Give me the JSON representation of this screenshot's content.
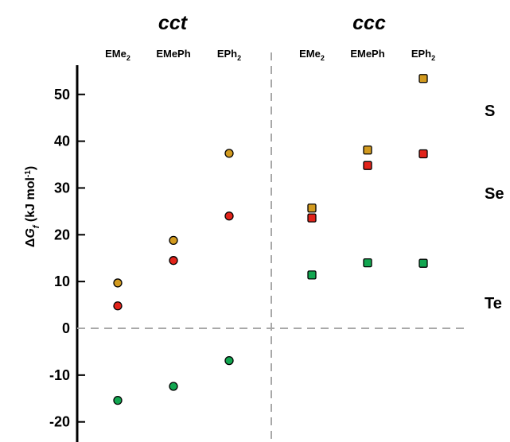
{
  "chart_data": {
    "type": "scatter",
    "panels": [
      {
        "title": "cct",
        "marker": "circle",
        "categories": [
          {
            "base": "EMe",
            "sub": "2"
          },
          {
            "base": "EMePh",
            "sub": ""
          },
          {
            "base": "EPh",
            "sub": "2"
          }
        ]
      },
      {
        "title": "ccc",
        "marker": "square",
        "categories": [
          {
            "base": "EMe",
            "sub": "2"
          },
          {
            "base": "EMePh",
            "sub": ""
          },
          {
            "base": "EPh",
            "sub": "2"
          }
        ]
      }
    ],
    "series": [
      {
        "name": "S",
        "color": "#d29a1f",
        "cct": [
          9.7,
          18.8,
          37.4
        ],
        "ccc": [
          25.7,
          38.1,
          53.4
        ]
      },
      {
        "name": "Se",
        "color": "#e2231a",
        "cct": [
          4.8,
          14.5,
          24.0
        ],
        "ccc": [
          23.6,
          34.8,
          37.3
        ]
      },
      {
        "name": "Te",
        "color": "#12a650",
        "cct": [
          -15.4,
          -12.4,
          -6.9
        ],
        "ccc": [
          11.4,
          14.0,
          13.9
        ]
      }
    ],
    "ylabel": {
      "prefix": "ΔG",
      "sub": "f",
      "units": " (kJ mol",
      "sup": "-1",
      "close": ")"
    },
    "ylim": [
      -22.5,
      57.5
    ],
    "yticks": [
      -20,
      -10,
      0,
      10,
      20,
      30,
      40,
      50
    ],
    "zero_line": true,
    "panel_divider": true,
    "legend_placement": "right, text labels beside series"
  }
}
